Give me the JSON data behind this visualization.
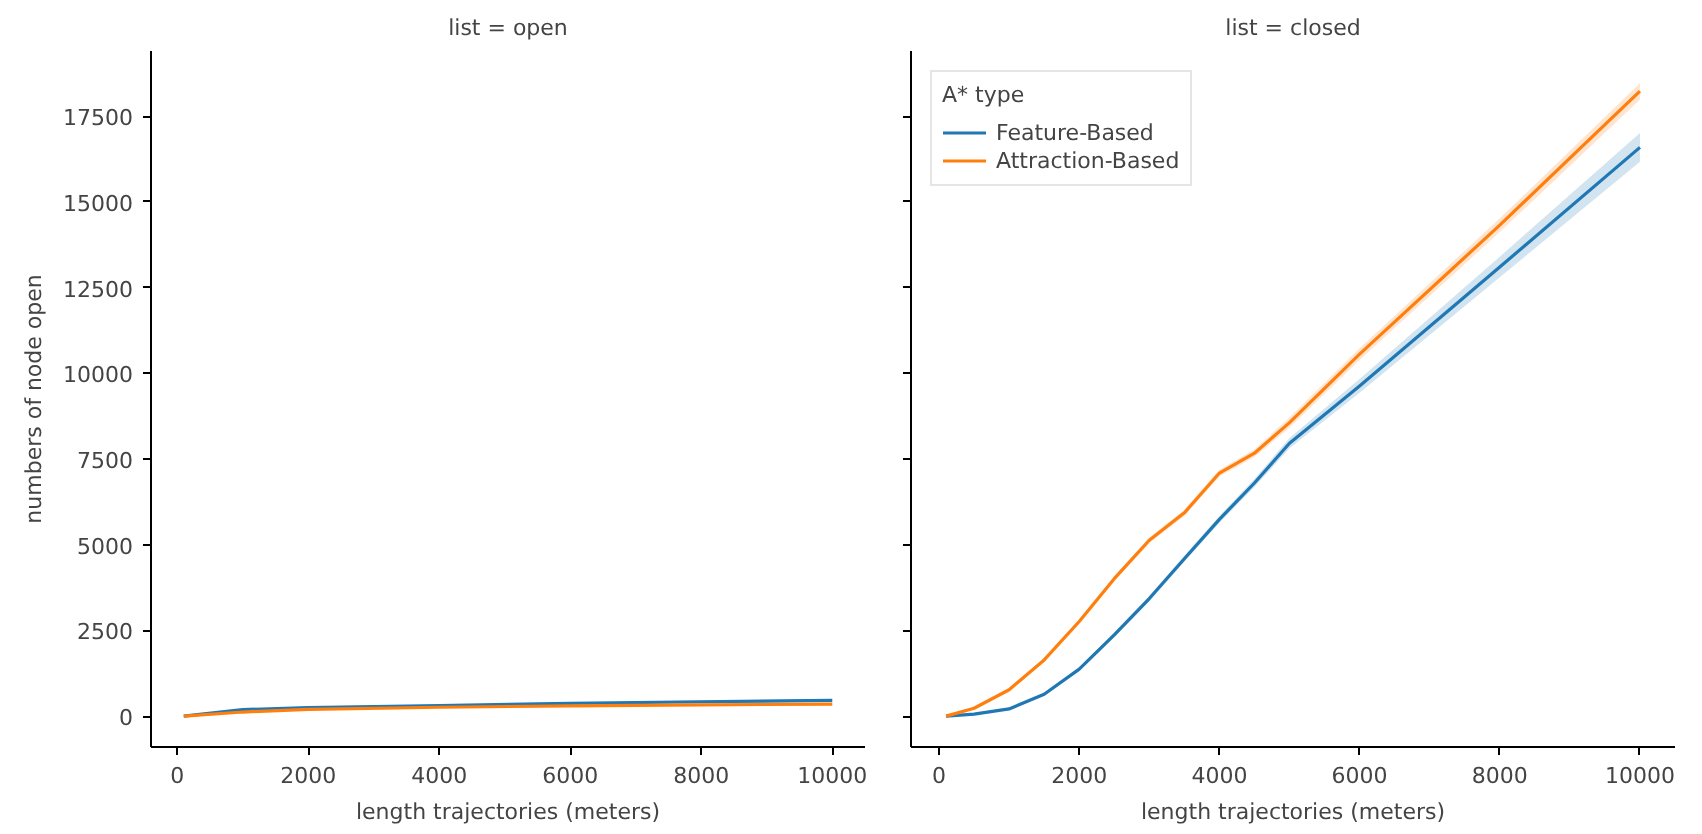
{
  "chart_data": [
    {
      "type": "line",
      "title": "list = open",
      "xlabel": "length trajectories (meters)",
      "ylabel": "numbers of node open",
      "xlim": [
        -400,
        10500
      ],
      "ylim": [
        -900,
        19400
      ],
      "xticks": [
        0,
        2000,
        4000,
        6000,
        8000,
        10000
      ],
      "yticks": [
        0,
        2500,
        5000,
        7500,
        10000,
        12500,
        15000,
        17500
      ],
      "grid": false,
      "legend": false,
      "series": [
        {
          "color": "#1f77b4",
          "x": [
            100,
            1000,
            2000,
            4000,
            6000,
            8000,
            10000
          ],
          "values": [
            0,
            190,
            250,
            310,
            370,
            420,
            460
          ],
          "lower": [
            0,
            170,
            225,
            285,
            340,
            385,
            420
          ],
          "upper": [
            0,
            210,
            275,
            335,
            400,
            455,
            500
          ]
        },
        {
          "color": "#ff7f0e",
          "x": [
            100,
            1000,
            2000,
            4000,
            6000,
            8000,
            10000
          ],
          "values": [
            0,
            120,
            200,
            260,
            300,
            330,
            350
          ],
          "lower": [
            0,
            105,
            180,
            240,
            275,
            300,
            320
          ],
          "upper": [
            0,
            135,
            220,
            280,
            325,
            360,
            380
          ]
        }
      ]
    },
    {
      "type": "line",
      "title": "list = closed",
      "xlabel": "length trajectories (meters)",
      "legend_title": "A* type",
      "xlim": [
        -400,
        10500
      ],
      "ylim": [
        -900,
        19400
      ],
      "xticks": [
        0,
        2000,
        4000,
        6000,
        8000,
        10000
      ],
      "yticks": [
        0,
        2500,
        5000,
        7500,
        10000,
        12500,
        15000,
        17500
      ],
      "tick_labels": "x",
      "grid": false,
      "legend": "top left",
      "series": [
        {
          "name": "Feature-Based",
          "color": "#1f77b4",
          "x": [
            100,
            500,
            1000,
            1500,
            2000,
            2500,
            3000,
            3500,
            4000,
            4500,
            5000,
            6000,
            8000,
            10000
          ],
          "values": [
            0,
            60,
            210,
            640,
            1370,
            2370,
            3430,
            4590,
            5740,
            6800,
            7960,
            9630,
            13100,
            16590
          ],
          "lower": [
            0,
            40,
            180,
            600,
            1320,
            2300,
            3350,
            4500,
            5640,
            6680,
            7810,
            9430,
            12800,
            16170
          ],
          "upper": [
            0,
            80,
            240,
            680,
            1420,
            2440,
            3510,
            4680,
            5840,
            6920,
            8110,
            9830,
            13400,
            17010
          ]
        },
        {
          "name": "Attraction-Based",
          "color": "#ff7f0e",
          "x": [
            100,
            500,
            1000,
            1500,
            2000,
            2500,
            3000,
            3500,
            4000,
            4500,
            5000,
            6000,
            8000,
            10000
          ],
          "values": [
            0,
            230,
            770,
            1640,
            2760,
            4010,
            5130,
            5930,
            7090,
            7670,
            8560,
            10560,
            14320,
            18230
          ],
          "lower": [
            0,
            200,
            730,
            1590,
            2700,
            3940,
            5050,
            5840,
            6990,
            7560,
            8410,
            10390,
            14120,
            17980
          ],
          "upper": [
            0,
            260,
            810,
            1690,
            2820,
            4080,
            5210,
            6020,
            7190,
            7780,
            8710,
            10730,
            14520,
            18460
          ]
        }
      ]
    }
  ]
}
